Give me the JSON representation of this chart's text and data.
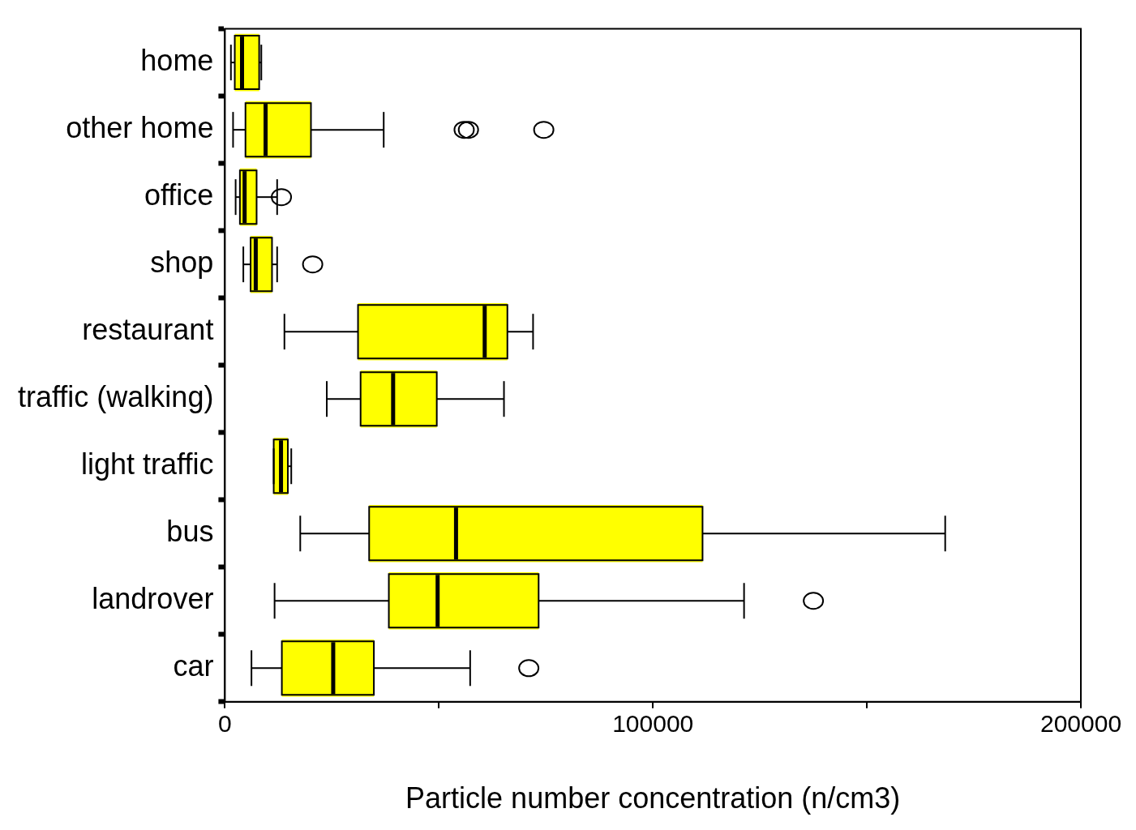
{
  "chart_data": {
    "type": "box",
    "orientation": "horizontal",
    "xlabel": "Particle number concentration (n/cm3)",
    "categories": [
      "home",
      "other home",
      "office",
      "shop",
      "restaurant",
      "traffic (walking)",
      "light traffic",
      "bus",
      "landrover",
      "car"
    ],
    "color": "#ffff00",
    "boxes": [
      {
        "low": 1400,
        "q1": 2300,
        "median": 4000,
        "q3": 8000,
        "high": 8500
      },
      {
        "low": 1900,
        "q1": 4800,
        "median": 9500,
        "q3": 20100,
        "high": 37100,
        "outliers": [
          55900,
          56900,
          74500
        ]
      },
      {
        "low": 2500,
        "q1": 3500,
        "median": 4600,
        "q3": 7400,
        "high": 12200,
        "outliers": [
          13200
        ]
      },
      {
        "low": 4300,
        "q1": 6000,
        "median": 7200,
        "q3": 11000,
        "high": 12200,
        "outliers": [
          20500
        ]
      },
      {
        "low": 13900,
        "q1": 31100,
        "median": 60700,
        "q3": 66000,
        "high": 72000
      },
      {
        "low": 23800,
        "q1": 31700,
        "median": 39300,
        "q3": 49500,
        "high": 65200
      },
      {
        "low": 11400,
        "q1": 11400,
        "median": 13100,
        "q3": 14700,
        "high": 15500
      },
      {
        "low": 17600,
        "q1": 33700,
        "median": 54000,
        "q3": 111600,
        "high": 168300
      },
      {
        "low": 11600,
        "q1": 38300,
        "median": 49700,
        "q3": 73300,
        "high": 121300,
        "outliers": [
          137500
        ]
      },
      {
        "low": 6200,
        "q1": 13300,
        "median": 25300,
        "q3": 34800,
        "high": 57300,
        "outliers": [
          71000
        ]
      }
    ],
    "xlim": [
      0,
      200000
    ],
    "xticks": [
      0,
      {
        "value": 50000,
        "label": null
      },
      100000,
      {
        "value": 150000,
        "label": null
      },
      200000
    ],
    "grid": false,
    "legend": false
  }
}
